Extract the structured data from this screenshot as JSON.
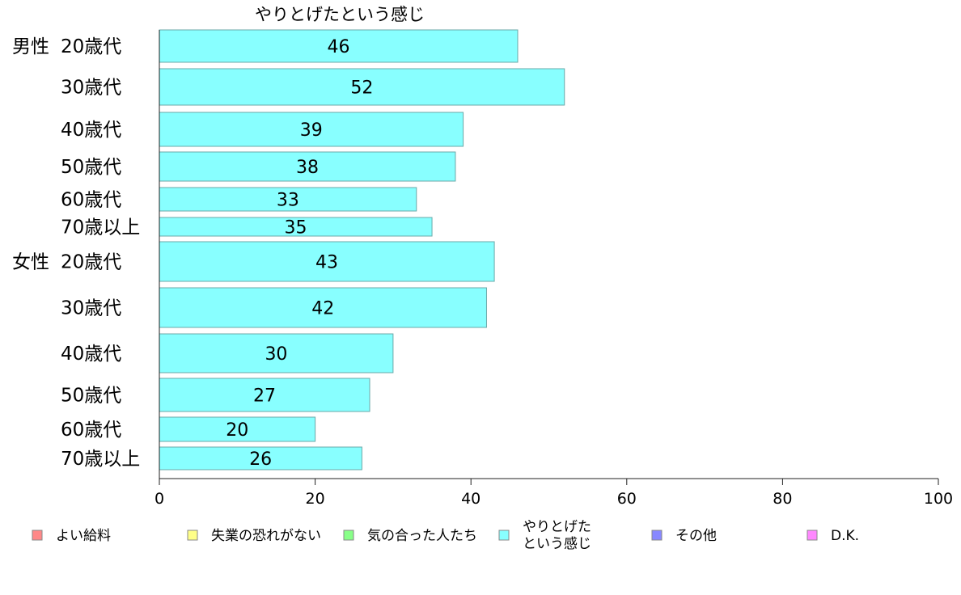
{
  "chart_data": {
    "type": "bar",
    "orientation": "horizontal",
    "title": "やりとげたという感じ",
    "groups": [
      {
        "label": "男性",
        "categories": [
          "20歳代",
          "30歳代",
          "40歳代",
          "50歳代",
          "60歳代",
          "70歳以上"
        ],
        "values": [
          46,
          52,
          39,
          38,
          33,
          35
        ]
      },
      {
        "label": "女性",
        "categories": [
          "20歳代",
          "30歳代",
          "40歳代",
          "50歳代",
          "60歳代",
          "70歳以上"
        ],
        "values": [
          43,
          42,
          30,
          27,
          20,
          26
        ]
      }
    ],
    "xlim": [
      0,
      100
    ],
    "xticks": [
      "0",
      "20",
      "40",
      "60",
      "80",
      "100"
    ],
    "grid": false,
    "bar_color": "#88ffff",
    "legend_position": "bottom",
    "legend": [
      {
        "label": "よい給料",
        "color": "#ff8888"
      },
      {
        "label": "失業の恐れがない",
        "color": "#ffff88"
      },
      {
        "label": "気の合った人たち",
        "color": "#88ff88"
      },
      {
        "label": "やりとげた\nという感じ",
        "color": "#88ffff"
      },
      {
        "label": "その他",
        "color": "#8888ff"
      },
      {
        "label": "D.K.",
        "color": "#ff88ff"
      }
    ]
  }
}
